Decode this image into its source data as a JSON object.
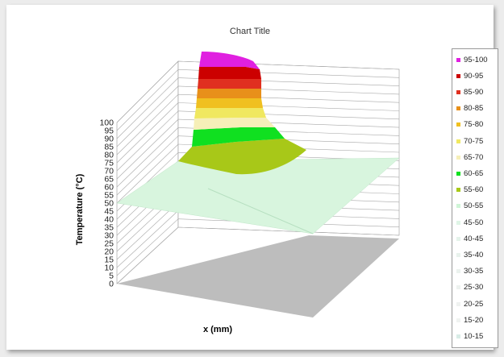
{
  "chart_data": {
    "type": "surface",
    "title": "Chart Title",
    "xlabel": "x (mm)",
    "zlabel": "Temperature (°C)",
    "zlim": [
      0,
      100
    ],
    "z_ticks": [
      "0",
      "5",
      "10",
      "15",
      "20",
      "25",
      "30",
      "35",
      "40",
      "45",
      "50",
      "55",
      "60",
      "65",
      "70",
      "75",
      "80",
      "85",
      "90",
      "95",
      "100"
    ],
    "surface": {
      "description_levels": "temperature peaks near 100 at back-left corner and decays to ~50 plateau",
      "peak": 100,
      "plateau": 50
    },
    "legend": [
      {
        "label": "95-100",
        "color": "#e020e0"
      },
      {
        "label": "90-95",
        "color": "#cc0000"
      },
      {
        "label": "85-90",
        "color": "#e03020"
      },
      {
        "label": "80-85",
        "color": "#e8901a"
      },
      {
        "label": "75-80",
        "color": "#f0c020"
      },
      {
        "label": "70-75",
        "color": "#f0e860"
      },
      {
        "label": "65-70",
        "color": "#f6efb8"
      },
      {
        "label": "60-65",
        "color": "#10e020"
      },
      {
        "label": "55-60",
        "color": "#a8c818"
      },
      {
        "label": "50-55",
        "color": "#cff5d6"
      },
      {
        "label": "45-50",
        "color": "#dff5e6"
      },
      {
        "label": "40-45",
        "color": "#e4f3ea"
      },
      {
        "label": "35-40",
        "color": "#e8f2ec"
      },
      {
        "label": "30-35",
        "color": "#ebf2ee"
      },
      {
        "label": "25-30",
        "color": "#edf2ef"
      },
      {
        "label": "20-25",
        "color": "#eff2f0"
      },
      {
        "label": "15-20",
        "color": "#f0f3f1"
      },
      {
        "label": "10-15",
        "color": "#d8ece6"
      }
    ]
  }
}
